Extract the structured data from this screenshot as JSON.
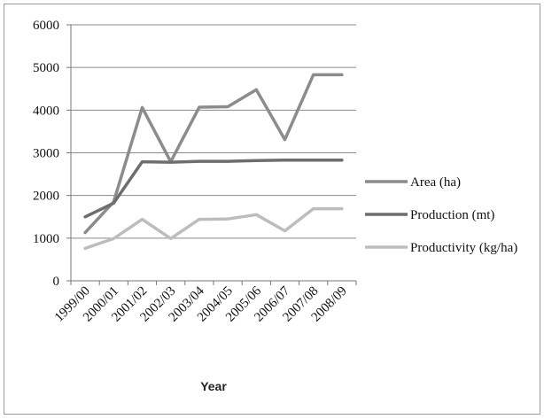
{
  "chart_data": {
    "type": "line",
    "title": "",
    "xlabel": "Year",
    "ylabel": "",
    "ylim": [
      0,
      6000
    ],
    "yticks": [
      0,
      1000,
      2000,
      3000,
      4000,
      5000,
      6000
    ],
    "grid": true,
    "legend_position": "right",
    "categories": [
      "1999/00",
      "2000/01",
      "2001/02",
      "2002/03",
      "2003/04",
      "2004/05",
      "2005/06",
      "2006/07",
      "2007/08",
      "2008/09"
    ],
    "series": [
      {
        "name": "Area (ha)",
        "color": "#8c8c8c",
        "values": [
          1130,
          1850,
          4060,
          2790,
          4070,
          4080,
          4480,
          3310,
          4830,
          4830
        ]
      },
      {
        "name": "Production (mt)",
        "color": "#6e6e6e",
        "values": [
          1500,
          1820,
          2790,
          2780,
          2800,
          2800,
          2820,
          2830,
          2830,
          2830
        ]
      },
      {
        "name": "Productivity (kg/ha)",
        "color": "#bdbdbd",
        "values": [
          760,
          990,
          1440,
          990,
          1440,
          1450,
          1550,
          1170,
          1690,
          1690
        ]
      }
    ]
  }
}
